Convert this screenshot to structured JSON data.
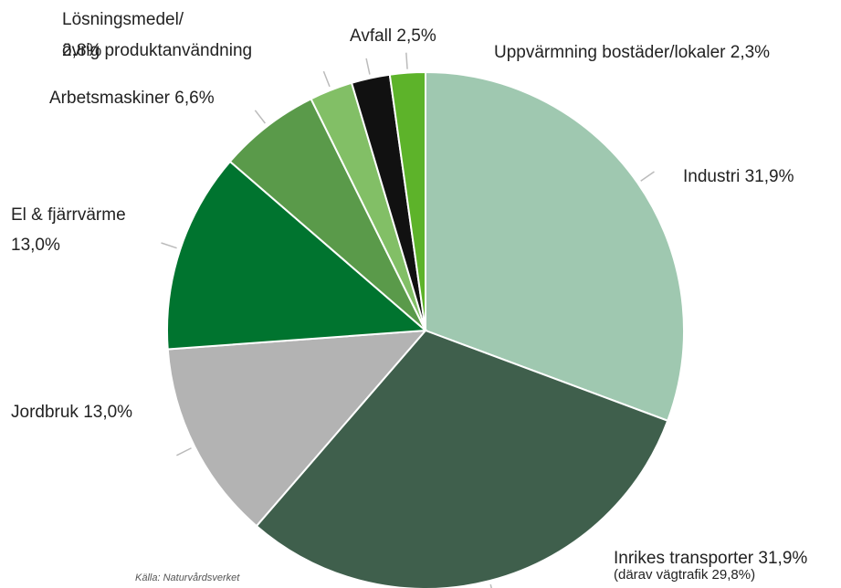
{
  "chart_data": {
    "type": "pie",
    "categories": [
      "Industri",
      "Inrikes transporter",
      "Jordbruk",
      "El & fjärrvärme",
      "Arbetsmaskiner",
      [
        "Lösningsmedel/",
        "övrig produktanvändning"
      ],
      "Avfall",
      "Uppvärmning bostäder/lokaler"
    ],
    "values": [
      31.9,
      31.9,
      13.0,
      13.0,
      6.6,
      2.8,
      2.5,
      2.3
    ],
    "value_labels": [
      "31,9%",
      "31,9%",
      "13,0%",
      "13,0%",
      "6,6%",
      "2,8%",
      "2,5%",
      "2,3%"
    ],
    "colors": [
      "#9fc8b0",
      "#3f5f4c",
      "#b3b3b3",
      "#00742f",
      "#5a9a4a",
      "#82bf66",
      "#111111",
      "#5db32a"
    ],
    "annotations": [
      "(därav vägtrafik 29,8%)"
    ],
    "source": "Källa: Naturvårdsverket"
  }
}
